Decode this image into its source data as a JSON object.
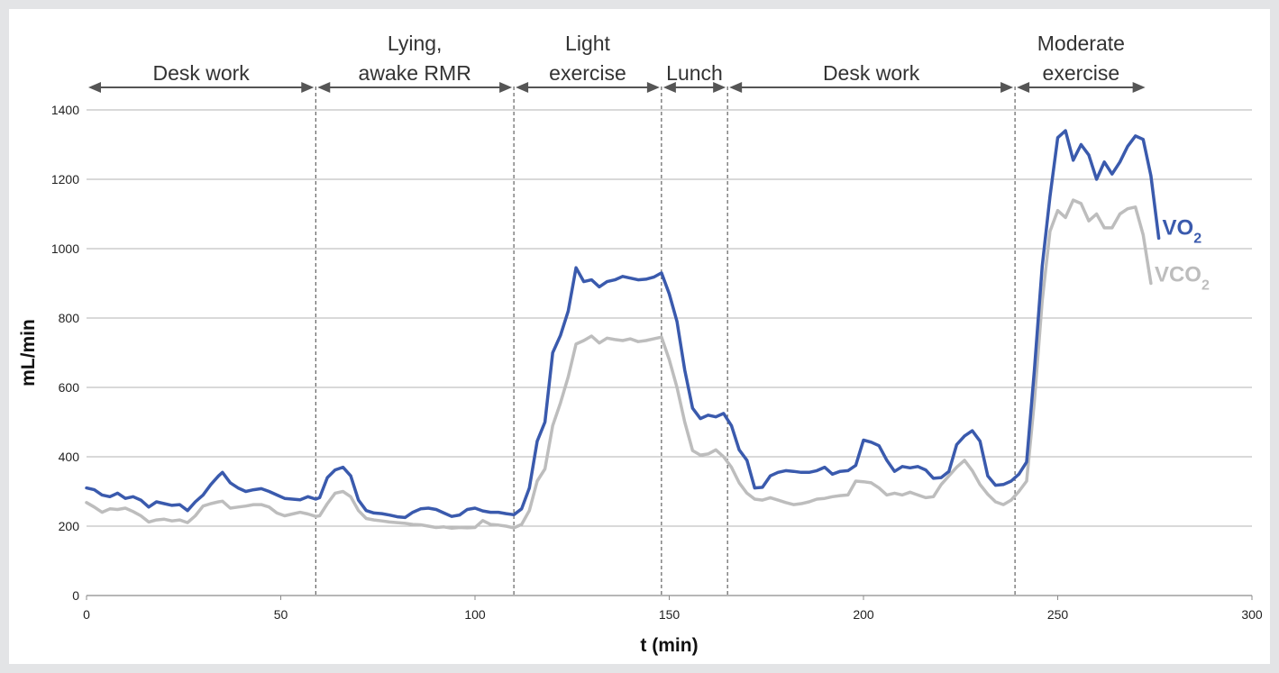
{
  "chart_data": {
    "type": "line",
    "title": "",
    "xlabel": "t (min)",
    "ylabel": "mL/min",
    "xlim": [
      0,
      300
    ],
    "ylim": [
      0,
      1400
    ],
    "xticks": [
      0,
      50,
      100,
      150,
      200,
      250,
      300
    ],
    "yticks": [
      0,
      200,
      400,
      600,
      800,
      1000,
      1200,
      1400
    ],
    "grid": "horizontal",
    "colors": {
      "VO2": "#3a5aad",
      "VCO2": "#bdbdbd",
      "grid": "#b3b3b3",
      "arrow": "#555555"
    },
    "phases": [
      {
        "label_lines": [
          "Desk work"
        ],
        "start": 0,
        "end": 59
      },
      {
        "label_lines": [
          "Lying,",
          "awake RMR"
        ],
        "start": 59,
        "end": 110
      },
      {
        "label_lines": [
          "Light",
          "exercise"
        ],
        "start": 110,
        "end": 148
      },
      {
        "label_lines": [
          "Lunch"
        ],
        "start": 148,
        "end": 165
      },
      {
        "label_lines": [
          "Desk work"
        ],
        "start": 165,
        "end": 239
      },
      {
        "label_lines": [
          "Moderate",
          "exercise"
        ],
        "start": 239,
        "end": 273
      }
    ],
    "boundaries": [
      59,
      110,
      148,
      165,
      239
    ],
    "series": [
      {
        "name": "VO2",
        "label_main": "VO",
        "label_sub": "2",
        "color": "#3a5aad",
        "points": [
          [
            0,
            310
          ],
          [
            2,
            305
          ],
          [
            4,
            290
          ],
          [
            6,
            285
          ],
          [
            8,
            295
          ],
          [
            10,
            280
          ],
          [
            12,
            285
          ],
          [
            14,
            275
          ],
          [
            16,
            255
          ],
          [
            18,
            270
          ],
          [
            20,
            265
          ],
          [
            22,
            260
          ],
          [
            24,
            262
          ],
          [
            26,
            245
          ],
          [
            28,
            270
          ],
          [
            30,
            290
          ],
          [
            32,
            320
          ],
          [
            34,
            345
          ],
          [
            35,
            355
          ],
          [
            37,
            325
          ],
          [
            39,
            310
          ],
          [
            41,
            300
          ],
          [
            43,
            305
          ],
          [
            45,
            308
          ],
          [
            47,
            300
          ],
          [
            49,
            290
          ],
          [
            51,
            280
          ],
          [
            53,
            278
          ],
          [
            55,
            276
          ],
          [
            57,
            285
          ],
          [
            59,
            278
          ],
          [
            60,
            282
          ],
          [
            62,
            340
          ],
          [
            64,
            362
          ],
          [
            66,
            370
          ],
          [
            68,
            345
          ],
          [
            70,
            275
          ],
          [
            72,
            245
          ],
          [
            74,
            238
          ],
          [
            76,
            236
          ],
          [
            78,
            232
          ],
          [
            80,
            227
          ],
          [
            82,
            225
          ],
          [
            84,
            240
          ],
          [
            86,
            250
          ],
          [
            88,
            252
          ],
          [
            90,
            248
          ],
          [
            92,
            238
          ],
          [
            94,
            228
          ],
          [
            96,
            232
          ],
          [
            98,
            248
          ],
          [
            100,
            252
          ],
          [
            102,
            244
          ],
          [
            104,
            240
          ],
          [
            106,
            240
          ],
          [
            108,
            236
          ],
          [
            110,
            233
          ],
          [
            112,
            250
          ],
          [
            114,
            310
          ],
          [
            116,
            445
          ],
          [
            118,
            500
          ],
          [
            120,
            700
          ],
          [
            122,
            750
          ],
          [
            124,
            820
          ],
          [
            126,
            945
          ],
          [
            128,
            905
          ],
          [
            130,
            910
          ],
          [
            132,
            890
          ],
          [
            134,
            905
          ],
          [
            136,
            910
          ],
          [
            138,
            920
          ],
          [
            140,
            915
          ],
          [
            142,
            910
          ],
          [
            144,
            912
          ],
          [
            146,
            918
          ],
          [
            148,
            930
          ],
          [
            150,
            870
          ],
          [
            152,
            790
          ],
          [
            154,
            650
          ],
          [
            156,
            540
          ],
          [
            158,
            510
          ],
          [
            160,
            520
          ],
          [
            162,
            515
          ],
          [
            164,
            525
          ],
          [
            166,
            490
          ],
          [
            168,
            420
          ],
          [
            170,
            390
          ],
          [
            172,
            310
          ],
          [
            174,
            312
          ],
          [
            176,
            345
          ],
          [
            178,
            355
          ],
          [
            180,
            360
          ],
          [
            182,
            358
          ],
          [
            184,
            355
          ],
          [
            186,
            355
          ],
          [
            188,
            360
          ],
          [
            190,
            370
          ],
          [
            192,
            350
          ],
          [
            194,
            358
          ],
          [
            196,
            360
          ],
          [
            198,
            375
          ],
          [
            200,
            448
          ],
          [
            202,
            442
          ],
          [
            204,
            432
          ],
          [
            206,
            390
          ],
          [
            208,
            358
          ],
          [
            210,
            372
          ],
          [
            212,
            368
          ],
          [
            214,
            372
          ],
          [
            216,
            362
          ],
          [
            218,
            338
          ],
          [
            220,
            340
          ],
          [
            222,
            358
          ],
          [
            224,
            435
          ],
          [
            226,
            460
          ],
          [
            228,
            475
          ],
          [
            230,
            445
          ],
          [
            232,
            345
          ],
          [
            234,
            318
          ],
          [
            236,
            320
          ],
          [
            238,
            330
          ],
          [
            240,
            350
          ],
          [
            242,
            385
          ],
          [
            244,
            650
          ],
          [
            246,
            950
          ],
          [
            248,
            1150
          ],
          [
            250,
            1320
          ],
          [
            252,
            1340
          ],
          [
            254,
            1255
          ],
          [
            256,
            1300
          ],
          [
            258,
            1270
          ],
          [
            260,
            1200
          ],
          [
            262,
            1250
          ],
          [
            264,
            1215
          ],
          [
            266,
            1250
          ],
          [
            268,
            1295
          ],
          [
            270,
            1325
          ],
          [
            272,
            1315
          ],
          [
            274,
            1210
          ],
          [
            276,
            1030
          ]
        ]
      },
      {
        "name": "VCO2",
        "label_main": "VCO",
        "label_sub": "2",
        "color": "#bdbdbd",
        "points": [
          [
            0,
            268
          ],
          [
            2,
            255
          ],
          [
            4,
            240
          ],
          [
            6,
            250
          ],
          [
            8,
            248
          ],
          [
            10,
            252
          ],
          [
            12,
            242
          ],
          [
            14,
            230
          ],
          [
            16,
            212
          ],
          [
            18,
            218
          ],
          [
            20,
            220
          ],
          [
            22,
            215
          ],
          [
            24,
            218
          ],
          [
            26,
            210
          ],
          [
            28,
            230
          ],
          [
            30,
            258
          ],
          [
            32,
            265
          ],
          [
            34,
            270
          ],
          [
            35,
            272
          ],
          [
            37,
            252
          ],
          [
            39,
            255
          ],
          [
            41,
            258
          ],
          [
            43,
            262
          ],
          [
            45,
            262
          ],
          [
            47,
            255
          ],
          [
            49,
            238
          ],
          [
            51,
            230
          ],
          [
            53,
            235
          ],
          [
            55,
            240
          ],
          [
            57,
            235
          ],
          [
            59,
            228
          ],
          [
            60,
            230
          ],
          [
            62,
            265
          ],
          [
            64,
            295
          ],
          [
            66,
            300
          ],
          [
            68,
            285
          ],
          [
            70,
            245
          ],
          [
            72,
            222
          ],
          [
            74,
            218
          ],
          [
            76,
            215
          ],
          [
            78,
            212
          ],
          [
            80,
            210
          ],
          [
            82,
            208
          ],
          [
            84,
            205
          ],
          [
            86,
            204
          ],
          [
            88,
            200
          ],
          [
            90,
            196
          ],
          [
            92,
            198
          ],
          [
            94,
            194
          ],
          [
            96,
            196
          ],
          [
            98,
            195
          ],
          [
            100,
            196
          ],
          [
            102,
            216
          ],
          [
            104,
            205
          ],
          [
            106,
            203
          ],
          [
            108,
            200
          ],
          [
            110,
            195
          ],
          [
            112,
            205
          ],
          [
            114,
            245
          ],
          [
            116,
            330
          ],
          [
            118,
            365
          ],
          [
            120,
            490
          ],
          [
            122,
            555
          ],
          [
            124,
            630
          ],
          [
            126,
            725
          ],
          [
            128,
            735
          ],
          [
            130,
            748
          ],
          [
            132,
            728
          ],
          [
            134,
            742
          ],
          [
            136,
            738
          ],
          [
            138,
            735
          ],
          [
            140,
            740
          ],
          [
            142,
            732
          ],
          [
            144,
            735
          ],
          [
            146,
            740
          ],
          [
            148,
            745
          ],
          [
            150,
            680
          ],
          [
            152,
            600
          ],
          [
            154,
            500
          ],
          [
            156,
            418
          ],
          [
            158,
            405
          ],
          [
            160,
            408
          ],
          [
            162,
            420
          ],
          [
            164,
            400
          ],
          [
            166,
            370
          ],
          [
            168,
            325
          ],
          [
            170,
            295
          ],
          [
            172,
            278
          ],
          [
            174,
            275
          ],
          [
            176,
            282
          ],
          [
            178,
            275
          ],
          [
            180,
            268
          ],
          [
            182,
            262
          ],
          [
            184,
            265
          ],
          [
            186,
            270
          ],
          [
            188,
            278
          ],
          [
            190,
            280
          ],
          [
            192,
            285
          ],
          [
            194,
            288
          ],
          [
            196,
            290
          ],
          [
            198,
            330
          ],
          [
            200,
            328
          ],
          [
            202,
            325
          ],
          [
            204,
            310
          ],
          [
            206,
            290
          ],
          [
            208,
            295
          ],
          [
            210,
            290
          ],
          [
            212,
            298
          ],
          [
            214,
            290
          ],
          [
            216,
            282
          ],
          [
            218,
            285
          ],
          [
            220,
            320
          ],
          [
            222,
            345
          ],
          [
            224,
            370
          ],
          [
            226,
            390
          ],
          [
            228,
            360
          ],
          [
            230,
            320
          ],
          [
            232,
            292
          ],
          [
            234,
            270
          ],
          [
            236,
            262
          ],
          [
            238,
            275
          ],
          [
            240,
            300
          ],
          [
            242,
            330
          ],
          [
            244,
            560
          ],
          [
            246,
            850
          ],
          [
            248,
            1050
          ],
          [
            250,
            1110
          ],
          [
            252,
            1090
          ],
          [
            254,
            1140
          ],
          [
            256,
            1130
          ],
          [
            258,
            1080
          ],
          [
            260,
            1100
          ],
          [
            262,
            1060
          ],
          [
            264,
            1060
          ],
          [
            266,
            1100
          ],
          [
            268,
            1115
          ],
          [
            270,
            1120
          ],
          [
            272,
            1040
          ],
          [
            274,
            900
          ]
        ]
      }
    ]
  }
}
